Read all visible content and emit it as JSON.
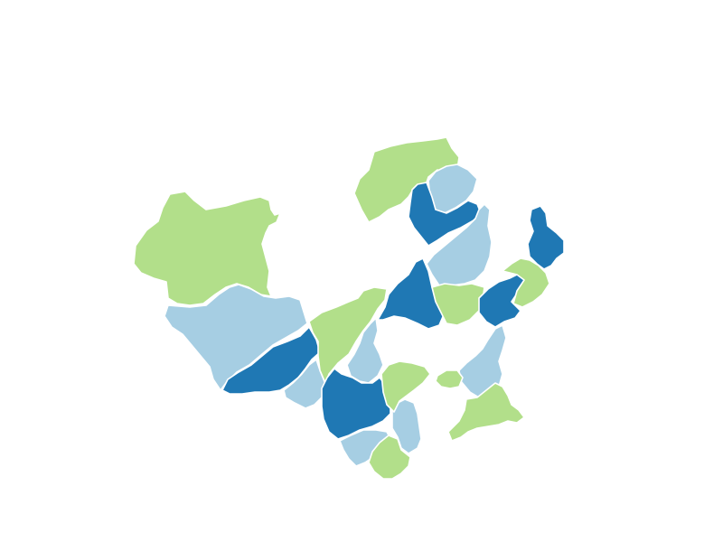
{
  "palette": {
    "green": "#b2df8a",
    "light-blue": "#a6cee3",
    "dark-blue": "#1f78b4"
  },
  "regions": [
    {
      "id": "west-large",
      "category": "green"
    },
    {
      "id": "southwest-large",
      "category": "light-blue"
    },
    {
      "id": "south-central-west",
      "category": "dark-blue"
    },
    {
      "id": "south-small-a",
      "category": "light-blue"
    },
    {
      "id": "central-strip",
      "category": "green"
    },
    {
      "id": "central-thin",
      "category": "light-blue"
    },
    {
      "id": "south-central",
      "category": "dark-blue"
    },
    {
      "id": "south-bottom-a",
      "category": "light-blue"
    },
    {
      "id": "south-bottom-b",
      "category": "green"
    },
    {
      "id": "south-strip",
      "category": "light-blue"
    },
    {
      "id": "central-south-small",
      "category": "green"
    },
    {
      "id": "central-hub",
      "category": "dark-blue"
    },
    {
      "id": "north-top",
      "category": "green"
    },
    {
      "id": "north-inner",
      "category": "light-blue"
    },
    {
      "id": "north-fork",
      "category": "dark-blue"
    },
    {
      "id": "northeast-strip",
      "category": "light-blue"
    },
    {
      "id": "east-center",
      "category": "green"
    },
    {
      "id": "east-hub",
      "category": "dark-blue"
    },
    {
      "id": "far-east-north",
      "category": "dark-blue"
    },
    {
      "id": "east-green",
      "category": "green"
    },
    {
      "id": "east-south-strip",
      "category": "light-blue"
    },
    {
      "id": "southeast",
      "category": "green"
    },
    {
      "id": "east-tiny",
      "category": "green"
    }
  ]
}
